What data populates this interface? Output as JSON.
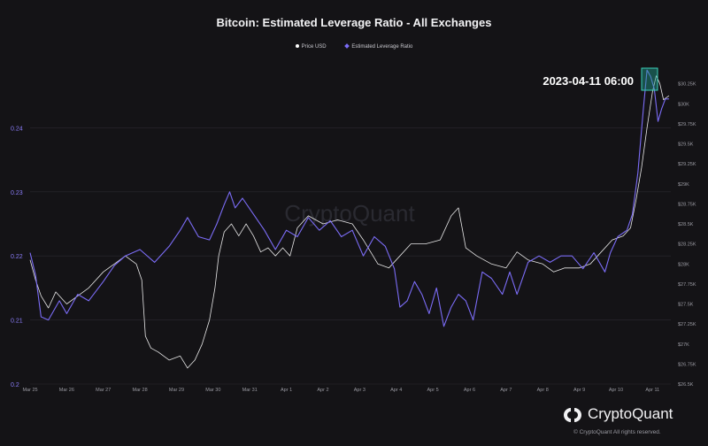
{
  "chart_data": {
    "type": "line",
    "title": "Bitcoin: Estimated Leverage Ratio - All Exchanges",
    "legend": [
      {
        "name": "Price USD",
        "color": "#ffffff"
      },
      {
        "name": "Estimated Leverage Ratio",
        "color": "#7b6cf6"
      }
    ],
    "legend_position": "top-center",
    "annotation": "2023-04-11 06:00",
    "x_ticks": [
      "Mar 25",
      "Mar 26",
      "Mar 27",
      "Mar 28",
      "Mar 29",
      "Mar 30",
      "Mar 31",
      "Apr 1",
      "Apr 2",
      "Apr 3",
      "Apr 4",
      "Apr 5",
      "Apr 6",
      "Apr 7",
      "Apr 8",
      "Apr 9",
      "Apr 10",
      "Apr 11"
    ],
    "xlim": [
      0,
      17.5
    ],
    "y_left": {
      "ticks": [
        "0.2",
        "0.21",
        "0.22",
        "0.23",
        "0.24"
      ],
      "range": [
        0.2,
        0.25
      ]
    },
    "y_right": {
      "ticks": [
        "$26.5K",
        "$26.75K",
        "$27K",
        "$27.25K",
        "$27.5K",
        "$27.75K",
        "$28K",
        "$28.25K",
        "$28.5K",
        "$28.75K",
        "$29K",
        "$29.25K",
        "$29.5K",
        "$29.75K",
        "$30K",
        "$30.25K"
      ],
      "range": [
        26500,
        30500
      ]
    },
    "grid": true,
    "series": [
      {
        "name": "Price USD",
        "color": "#ffffff",
        "axis": "right",
        "points": [
          [
            0,
            28050
          ],
          [
            0.15,
            27800
          ],
          [
            0.3,
            27600
          ],
          [
            0.5,
            27450
          ],
          [
            0.7,
            27650
          ],
          [
            1,
            27500
          ],
          [
            1.3,
            27600
          ],
          [
            1.6,
            27700
          ],
          [
            2,
            27900
          ],
          [
            2.3,
            28000
          ],
          [
            2.6,
            28100
          ],
          [
            2.9,
            28000
          ],
          [
            3.05,
            27800
          ],
          [
            3.15,
            27100
          ],
          [
            3.3,
            26950
          ],
          [
            3.5,
            26900
          ],
          [
            3.8,
            26800
          ],
          [
            4.1,
            26850
          ],
          [
            4.3,
            26700
          ],
          [
            4.5,
            26800
          ],
          [
            4.7,
            27000
          ],
          [
            4.9,
            27300
          ],
          [
            5.05,
            27700
          ],
          [
            5.15,
            28100
          ],
          [
            5.3,
            28400
          ],
          [
            5.5,
            28500
          ],
          [
            5.7,
            28350
          ],
          [
            5.9,
            28500
          ],
          [
            6.1,
            28350
          ],
          [
            6.3,
            28150
          ],
          [
            6.5,
            28200
          ],
          [
            6.7,
            28100
          ],
          [
            6.9,
            28200
          ],
          [
            7.1,
            28100
          ],
          [
            7.3,
            28450
          ],
          [
            7.6,
            28600
          ],
          [
            8,
            28500
          ],
          [
            8.4,
            28550
          ],
          [
            8.8,
            28500
          ],
          [
            9.1,
            28300
          ],
          [
            9.3,
            28150
          ],
          [
            9.5,
            28000
          ],
          [
            9.8,
            27950
          ],
          [
            10.1,
            28100
          ],
          [
            10.4,
            28250
          ],
          [
            10.8,
            28250
          ],
          [
            11.2,
            28300
          ],
          [
            11.5,
            28600
          ],
          [
            11.7,
            28700
          ],
          [
            11.9,
            28200
          ],
          [
            12.2,
            28100
          ],
          [
            12.6,
            28000
          ],
          [
            13,
            27950
          ],
          [
            13.3,
            28150
          ],
          [
            13.6,
            28050
          ],
          [
            14,
            28000
          ],
          [
            14.3,
            27900
          ],
          [
            14.6,
            27950
          ],
          [
            15,
            27950
          ],
          [
            15.3,
            28000
          ],
          [
            15.6,
            28150
          ],
          [
            15.9,
            28300
          ],
          [
            16.2,
            28350
          ],
          [
            16.4,
            28450
          ],
          [
            16.55,
            28800
          ],
          [
            16.7,
            29200
          ],
          [
            16.85,
            29700
          ],
          [
            17,
            30150
          ],
          [
            17.1,
            30350
          ],
          [
            17.2,
            30250
          ],
          [
            17.3,
            30050
          ],
          [
            17.45,
            30100
          ]
        ]
      },
      {
        "name": "Estimated Leverage Ratio",
        "color": "#7b6cf6",
        "axis": "left",
        "points": [
          [
            0,
            0.2205
          ],
          [
            0.15,
            0.217
          ],
          [
            0.3,
            0.2105
          ],
          [
            0.5,
            0.21
          ],
          [
            0.8,
            0.213
          ],
          [
            1,
            0.211
          ],
          [
            1.3,
            0.214
          ],
          [
            1.6,
            0.213
          ],
          [
            2,
            0.216
          ],
          [
            2.3,
            0.2185
          ],
          [
            2.6,
            0.22
          ],
          [
            3,
            0.221
          ],
          [
            3.4,
            0.219
          ],
          [
            3.8,
            0.2215
          ],
          [
            4.1,
            0.224
          ],
          [
            4.3,
            0.226
          ],
          [
            4.6,
            0.223
          ],
          [
            4.9,
            0.2225
          ],
          [
            5.1,
            0.225
          ],
          [
            5.3,
            0.228
          ],
          [
            5.45,
            0.23
          ],
          [
            5.6,
            0.2275
          ],
          [
            5.8,
            0.229
          ],
          [
            6.1,
            0.2265
          ],
          [
            6.4,
            0.224
          ],
          [
            6.7,
            0.221
          ],
          [
            7,
            0.224
          ],
          [
            7.3,
            0.223
          ],
          [
            7.6,
            0.226
          ],
          [
            7.9,
            0.224
          ],
          [
            8.2,
            0.2255
          ],
          [
            8.5,
            0.223
          ],
          [
            8.8,
            0.224
          ],
          [
            9.1,
            0.22
          ],
          [
            9.4,
            0.223
          ],
          [
            9.7,
            0.2215
          ],
          [
            9.95,
            0.218
          ],
          [
            10.1,
            0.212
          ],
          [
            10.3,
            0.213
          ],
          [
            10.5,
            0.216
          ],
          [
            10.7,
            0.214
          ],
          [
            10.9,
            0.211
          ],
          [
            11.1,
            0.215
          ],
          [
            11.3,
            0.209
          ],
          [
            11.5,
            0.212
          ],
          [
            11.7,
            0.214
          ],
          [
            11.9,
            0.213
          ],
          [
            12.1,
            0.21
          ],
          [
            12.35,
            0.2175
          ],
          [
            12.6,
            0.2165
          ],
          [
            12.9,
            0.214
          ],
          [
            13.1,
            0.2175
          ],
          [
            13.3,
            0.214
          ],
          [
            13.6,
            0.219
          ],
          [
            13.9,
            0.22
          ],
          [
            14.2,
            0.219
          ],
          [
            14.5,
            0.22
          ],
          [
            14.8,
            0.22
          ],
          [
            15.1,
            0.218
          ],
          [
            15.4,
            0.2205
          ],
          [
            15.7,
            0.2175
          ],
          [
            15.85,
            0.2205
          ],
          [
            16.05,
            0.223
          ],
          [
            16.3,
            0.224
          ],
          [
            16.45,
            0.2265
          ],
          [
            16.6,
            0.233
          ],
          [
            16.75,
            0.243
          ],
          [
            16.85,
            0.249
          ],
          [
            16.95,
            0.248
          ],
          [
            17.05,
            0.246
          ],
          [
            17.15,
            0.241
          ],
          [
            17.25,
            0.243
          ],
          [
            17.35,
            0.2445
          ],
          [
            17.45,
            0.2445
          ]
        ]
      }
    ]
  },
  "watermark": "CryptoQuant",
  "brand": {
    "name": "CryptoQuant",
    "copyright": "© CryptoQuant All rights reserved."
  }
}
